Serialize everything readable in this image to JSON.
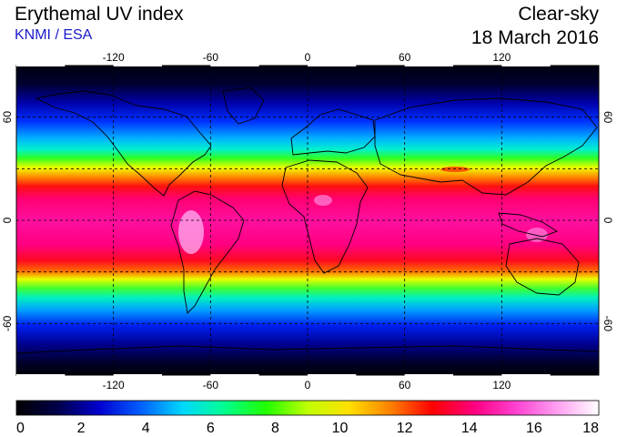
{
  "header": {
    "title": "Erythemal UV index",
    "source": "KNMI / ESA",
    "condition": "Clear-sky",
    "date": "18 March 2016"
  },
  "map": {
    "lon_ticks": [
      "-120",
      "-60",
      "0",
      "60",
      "120"
    ],
    "lat_ticks": [
      "60",
      "0",
      "-60"
    ],
    "lon_values": [
      -120,
      -60,
      0,
      60,
      120
    ],
    "lat_values": [
      60,
      0,
      -60
    ],
    "lon_range": [
      -180,
      180
    ],
    "lat_range": [
      -90,
      90
    ],
    "gridlines": true
  },
  "colorbar": {
    "tick_labels": [
      "0",
      "2",
      "4",
      "6",
      "8",
      "10",
      "12",
      "14",
      "16",
      "18"
    ],
    "range": [
      0,
      18
    ],
    "colors": [
      "#000000",
      "#00004a",
      "#0000d0",
      "#0060ff",
      "#00d8ff",
      "#00ff90",
      "#20ff00",
      "#c0ff00",
      "#ffe000",
      "#ff8000",
      "#ff0000",
      "#ff0080",
      "#ff40d0",
      "#ffa0f0",
      "#ffffff"
    ]
  }
}
